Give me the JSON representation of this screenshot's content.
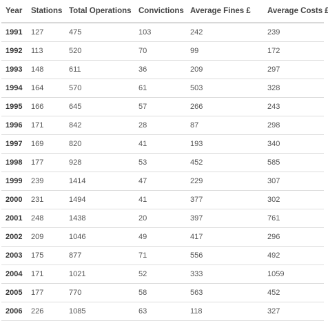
{
  "table": {
    "headers": [
      "Year",
      "Stations",
      "Total Operations",
      "Convictions",
      "Average Fines £",
      "Average Costs £"
    ],
    "rows": [
      [
        "1991",
        "127",
        "475",
        "103",
        "242",
        "239"
      ],
      [
        "1992",
        "113",
        "520",
        "70",
        "99",
        "172"
      ],
      [
        "1993",
        "148",
        "611",
        "36",
        "209",
        "297"
      ],
      [
        "1994",
        "164",
        "570",
        "61",
        "503",
        "328"
      ],
      [
        "1995",
        "166",
        "645",
        "57",
        "266",
        "243"
      ],
      [
        "1996",
        "171",
        "842",
        "28",
        "87",
        "298"
      ],
      [
        "1997",
        "169",
        "820",
        "41",
        "193",
        "340"
      ],
      [
        "1998",
        "177",
        "928",
        "53",
        "452",
        "585"
      ],
      [
        "1999",
        "239",
        "1414",
        "47",
        "229",
        "307"
      ],
      [
        "2000",
        "231",
        "1494",
        "41",
        "377",
        "302"
      ],
      [
        "2001",
        "248",
        "1438",
        "20",
        "397",
        "761"
      ],
      [
        "2002",
        "209",
        "1046",
        "49",
        "417",
        "296"
      ],
      [
        "2003",
        "175",
        "877",
        "71",
        "556",
        "492"
      ],
      [
        "2004",
        "171",
        "1021",
        "52",
        "333",
        "1059"
      ],
      [
        "2005",
        "177",
        "770",
        "58",
        "563",
        "452"
      ],
      [
        "2006",
        "226",
        "1085",
        "63",
        "118",
        "327"
      ]
    ]
  },
  "colors": {
    "header_text": "#444444",
    "body_text": "#555555",
    "year_text": "#333333",
    "row_border": "#dddddd",
    "header_border": "#d9d9d9",
    "background": "#ffffff"
  }
}
